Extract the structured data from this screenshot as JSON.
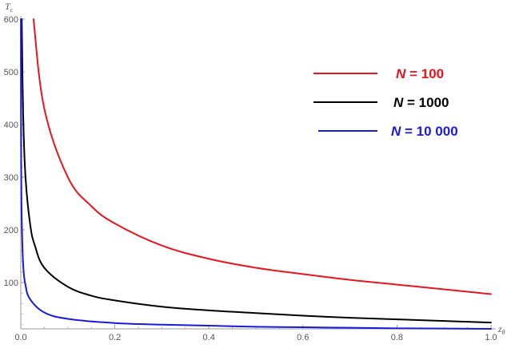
{
  "chart_data": {
    "type": "line",
    "xlabel": "z",
    "xlabel_subscript": "θ",
    "ylabel": "T",
    "ylabel_subscript": "c",
    "xlim": [
      0,
      1
    ],
    "ylim": [
      12,
      600
    ],
    "x_ticks": [
      0.0,
      0.2,
      0.4,
      0.6,
      0.8,
      1.0
    ],
    "x_tick_labels": [
      "0.0",
      "0.2",
      "0.4",
      "0.6",
      "0.8",
      "1.0"
    ],
    "y_ticks": [
      100,
      200,
      300,
      400,
      500,
      600
    ],
    "y_tick_labels": [
      "100",
      "200",
      "300",
      "400",
      "500",
      "600"
    ],
    "grid": false,
    "legend_position": "top-right",
    "series": [
      {
        "name": "N = 100",
        "name_var": "N",
        "name_rest": " = 100",
        "color": "#e8141e",
        "x": [
          0.027,
          0.05,
          0.1,
          0.15,
          0.2,
          0.3,
          0.4,
          0.5,
          0.6,
          0.7,
          0.8,
          0.9,
          1.0
        ],
        "y": [
          600,
          430,
          300,
          245,
          212,
          170,
          145,
          128,
          116,
          105,
          96,
          87,
          78
        ]
      },
      {
        "name": "N = 1000",
        "name_var": "N",
        "name_rest": " = 1000",
        "color": "#000000",
        "x": [
          0.002,
          0.005,
          0.01,
          0.02,
          0.03,
          0.05,
          0.1,
          0.15,
          0.2,
          0.3,
          0.4,
          0.5,
          0.6,
          0.7,
          0.8,
          0.9,
          1.0
        ],
        "y": [
          600,
          420,
          300,
          210,
          170,
          128,
          92,
          75,
          66,
          54,
          47,
          42,
          37,
          33,
          30,
          27,
          24
        ]
      },
      {
        "name": "N = 10 000",
        "name_var": "N",
        "name_rest": " = 10 000",
        "color": "#1a1adc",
        "x": [
          0.0002,
          0.0005,
          0.001,
          0.002,
          0.005,
          0.01,
          0.02,
          0.05,
          0.1,
          0.2,
          0.3,
          0.4,
          0.5,
          0.6,
          0.7,
          0.8,
          0.9,
          1.0
        ],
        "y": [
          600,
          400,
          300,
          220,
          135,
          95,
          68,
          43,
          31,
          23,
          20,
          18,
          16,
          15,
          14,
          13,
          12.5,
          12
        ]
      }
    ]
  }
}
